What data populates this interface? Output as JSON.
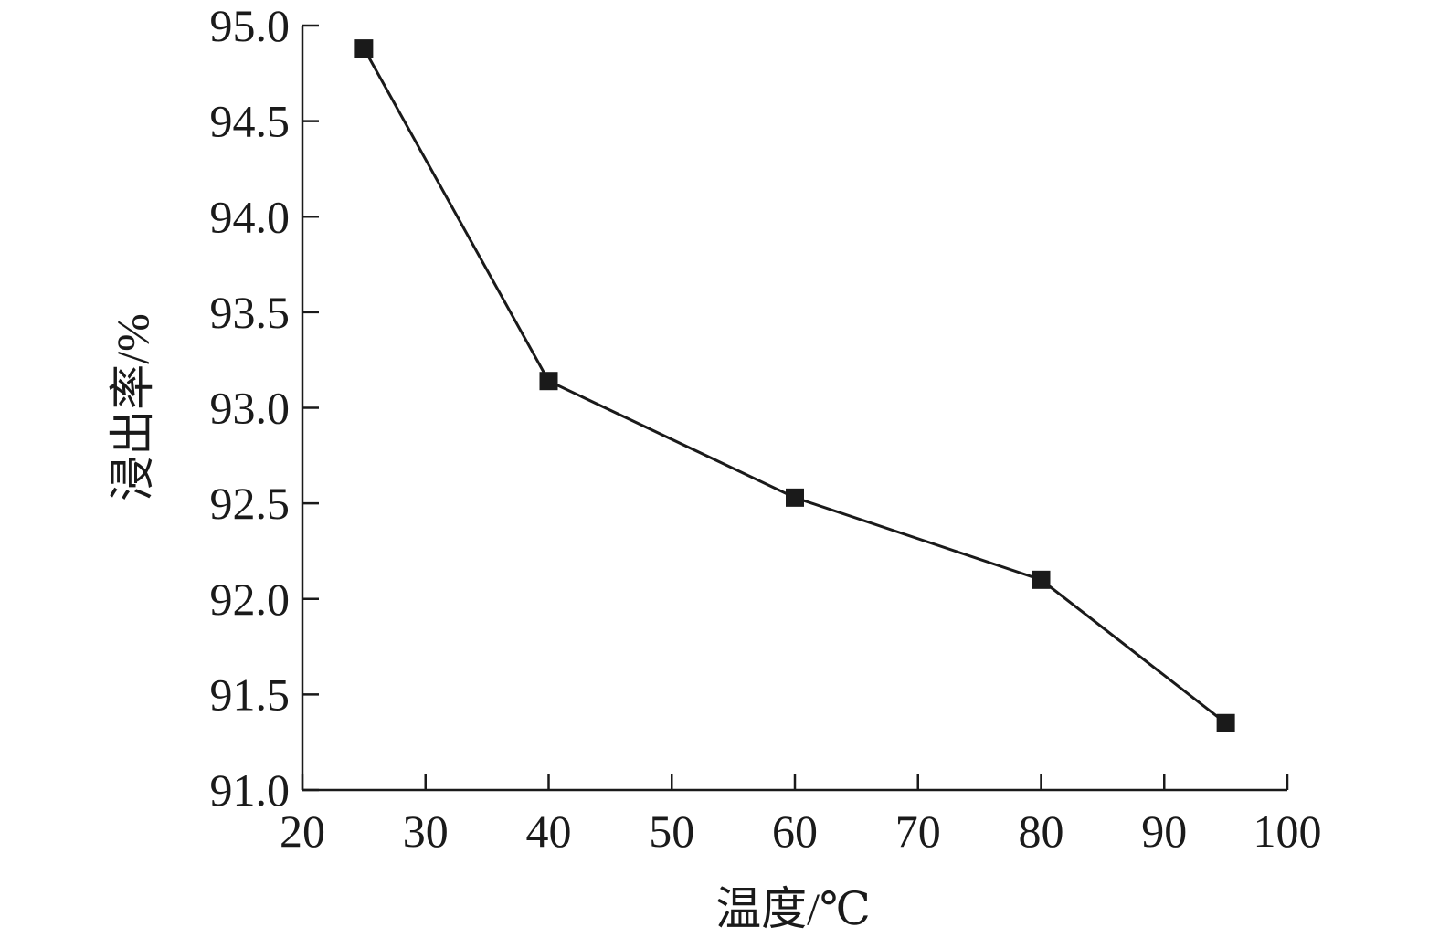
{
  "chart_data": {
    "type": "line",
    "title": "",
    "xlabel": "温度/℃",
    "ylabel": "浸出率/%",
    "xlim": [
      20,
      100
    ],
    "ylim": [
      91.0,
      95.0
    ],
    "xticks": [
      20,
      30,
      40,
      50,
      60,
      70,
      80,
      90,
      100
    ],
    "xtick_labels": [
      "20",
      "30",
      "40",
      "50",
      "60",
      "70",
      "80",
      "90",
      "100"
    ],
    "yticks": [
      91.0,
      91.5,
      92.0,
      92.5,
      93.0,
      93.5,
      94.0,
      94.5,
      95.0
    ],
    "ytick_labels": [
      "91.0",
      "91.5",
      "92.0",
      "92.5",
      "93.0",
      "93.5",
      "94.0",
      "94.5",
      "95.0"
    ],
    "grid": false,
    "legend": "none",
    "series": [
      {
        "marker": "square",
        "color": "#1a1a1a",
        "x": [
          25,
          40,
          60,
          80,
          95
        ],
        "y": [
          94.88,
          93.14,
          92.53,
          92.1,
          91.35
        ]
      }
    ]
  }
}
